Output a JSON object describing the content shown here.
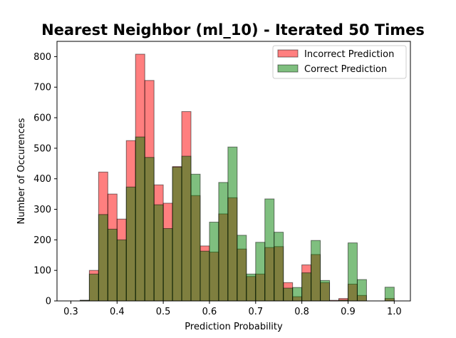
{
  "chart_data": {
    "type": "bar",
    "title": "Nearest Neighbor (ml_10) - Iterated 50 Times",
    "xlabel": "Prediction Probability",
    "ylabel": "Number of Occurences",
    "xlim": [
      0.27,
      1.035
    ],
    "ylim": [
      0,
      850
    ],
    "xticks": [
      "0.3",
      "0.4",
      "0.5",
      "0.6",
      "0.7",
      "0.8",
      "0.9",
      "1.0"
    ],
    "xtick_values": [
      0.3,
      0.4,
      0.5,
      0.6,
      0.7,
      0.8,
      0.9,
      1.0
    ],
    "yticks": [
      "0",
      "100",
      "200",
      "300",
      "400",
      "500",
      "600",
      "700",
      "800"
    ],
    "ytick_values": [
      0,
      100,
      200,
      300,
      400,
      500,
      600,
      700,
      800
    ],
    "bin_start": 0.3,
    "bin_width": 0.02,
    "grid": false,
    "legend_position": "top-right",
    "series": [
      {
        "name": "Incorrect Prediction",
        "color": "#ff0000",
        "values": [
          0,
          2,
          100,
          422,
          350,
          268,
          525,
          808,
          722,
          380,
          320,
          440,
          620,
          345,
          180,
          160,
          285,
          338,
          170,
          80,
          88,
          175,
          178,
          60,
          14,
          118,
          152,
          60,
          2,
          8,
          55,
          18,
          0,
          0,
          8
        ]
      },
      {
        "name": "Correct Prediction",
        "color": "#008000",
        "values": [
          0,
          2,
          88,
          283,
          235,
          200,
          373,
          537,
          470,
          315,
          237,
          438,
          474,
          415,
          163,
          258,
          388,
          504,
          215,
          88,
          192,
          334,
          225,
          42,
          44,
          92,
          198,
          67,
          0,
          3,
          190,
          70,
          0,
          0,
          45
        ]
      }
    ]
  }
}
